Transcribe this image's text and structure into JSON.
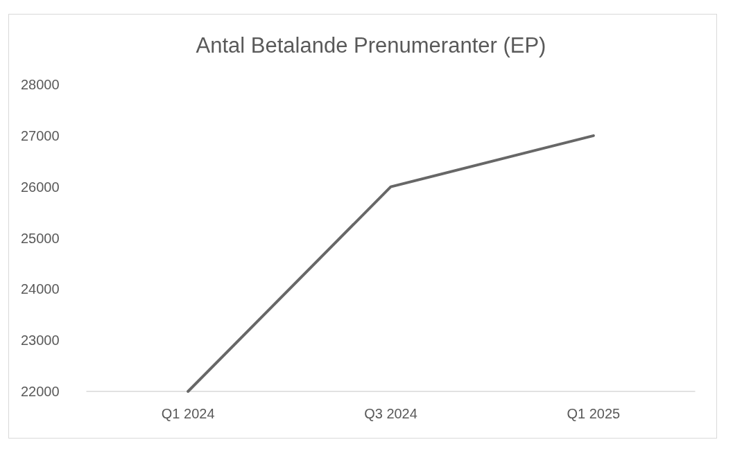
{
  "chart_data": {
    "type": "line",
    "title": "Antal Betalande Prenumeranter (EP)",
    "categories": [
      "Q1 2024",
      "Q3 2024",
      "Q1 2025"
    ],
    "series": [
      {
        "color": "#676767",
        "values": [
          22000,
          26000,
          27000
        ]
      }
    ],
    "ylim": [
      22000,
      28000
    ],
    "yticks": [
      22000,
      23000,
      24000,
      25000,
      26000,
      27000,
      28000
    ],
    "grid": false,
    "marker": "none",
    "line_style": "solid"
  }
}
